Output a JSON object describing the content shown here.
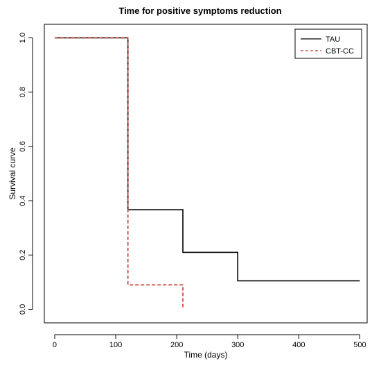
{
  "chart_data": {
    "type": "line",
    "step": true,
    "title": "Time for positive symptoms reduction",
    "xlabel": "Time (days)",
    "ylabel": "Survival curve",
    "xlim": [
      -17,
      512
    ],
    "ylim": [
      -0.05,
      1.05
    ],
    "x_ticks": [
      0,
      100,
      200,
      300,
      400,
      500
    ],
    "y_ticks": [
      0.0,
      0.2,
      0.4,
      0.6,
      0.8,
      1.0
    ],
    "x_tick_labels": [
      "0",
      "100",
      "200",
      "300",
      "400",
      "500"
    ],
    "y_tick_labels": [
      "0.0",
      "0.2",
      "0.4",
      "0.6",
      "0.8",
      "1.0"
    ],
    "legend_position": "top-right",
    "grid": false,
    "series": [
      {
        "name": "TAU",
        "color": "#000000",
        "dash": "solid",
        "x": [
          0,
          120,
          120,
          210,
          210,
          300,
          300,
          500
        ],
        "y": [
          1.0,
          1.0,
          0.367,
          0.367,
          0.21,
          0.21,
          0.105,
          0.105
        ]
      },
      {
        "name": "CBT-CC",
        "color": "#c0392b",
        "dash": "dashed",
        "x": [
          0,
          120,
          120,
          210,
          210
        ],
        "y": [
          1.0,
          1.0,
          0.09,
          0.09,
          0.0
        ]
      }
    ]
  }
}
